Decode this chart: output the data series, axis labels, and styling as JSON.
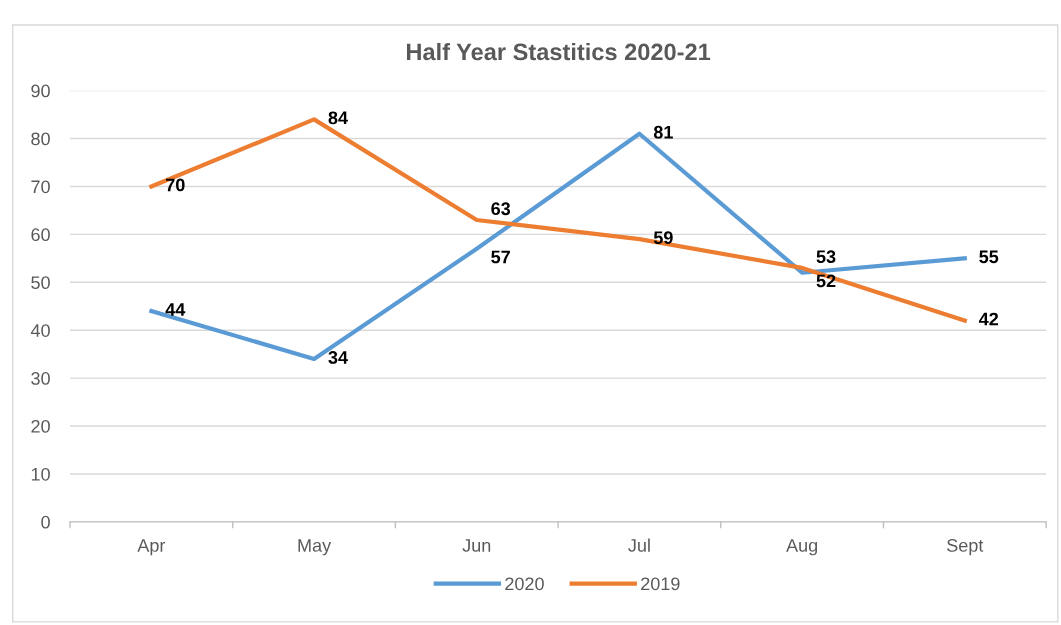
{
  "chart_data": {
    "type": "line",
    "title": "Half Year Stastitics 2020-21",
    "categories": [
      "Apr",
      "May",
      "Jun",
      "Jul",
      "Aug",
      "Sept"
    ],
    "series": [
      {
        "name": "2020",
        "color": "#5b9bd5",
        "values": [
          44,
          34,
          57,
          81,
          52,
          55
        ]
      },
      {
        "name": "2019",
        "color": "#ed7d31",
        "values": [
          70,
          84,
          63,
          59,
          53,
          42
        ]
      }
    ],
    "ylim": [
      0,
      90
    ],
    "yticks": [
      0,
      10,
      20,
      30,
      40,
      50,
      60,
      70,
      80,
      90
    ],
    "grid": "y",
    "legend": "bottom",
    "data_labels": true,
    "marker": "none",
    "line_style": "solid"
  }
}
